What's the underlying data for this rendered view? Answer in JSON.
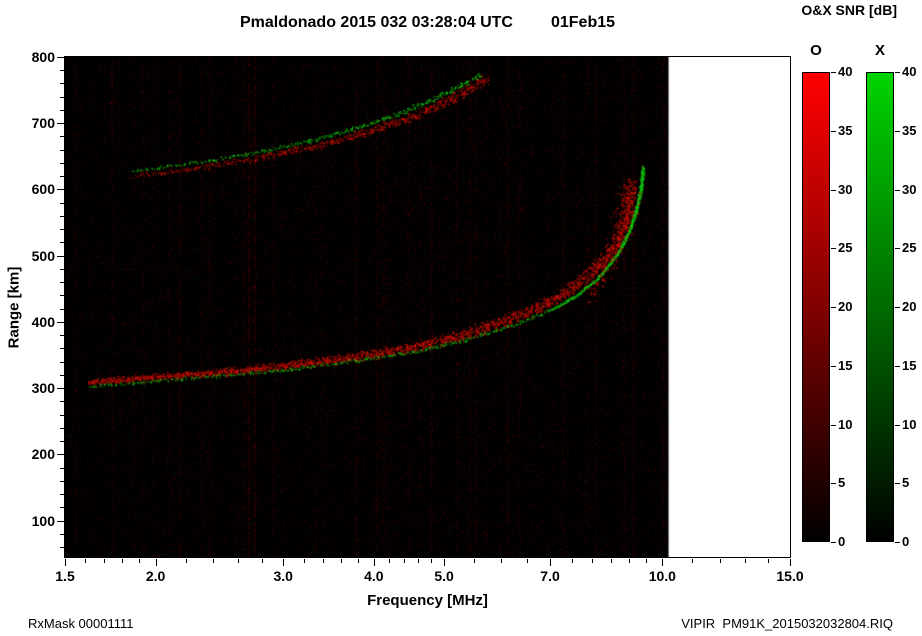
{
  "header": {
    "title": "Pmaldonado 2015 032 03:28:04 UTC",
    "date": "01Feb15",
    "colorbar_title": "O&X SNR [dB]"
  },
  "footer": {
    "left": "RxMask 00001111",
    "right": "VIPIR  PM91K_2015032032804.RIQ"
  },
  "chart_data": {
    "type": "heatmap",
    "title": "Pmaldonado 2015 032 03:28:04 UTC  01Feb15",
    "xlabel": "Frequency [MHz]",
    "ylabel": "Range [km]",
    "x_scale": "log",
    "xlim": [
      1.5,
      15.0
    ],
    "ylim": [
      45,
      800
    ],
    "data_fmax": 10.2,
    "background": "#000000",
    "grid": false,
    "x_ticks": [
      1.5,
      2.0,
      3.0,
      4.0,
      5.0,
      7.0,
      10.0,
      15.0
    ],
    "x_tick_labels": [
      "1.5",
      "2.0",
      "3.0",
      "4.0",
      "5.0",
      "7.0",
      "10.0",
      "15.0"
    ],
    "x_minor_ticks": [
      1.6,
      1.7,
      1.8,
      1.9,
      2.2,
      2.4,
      2.6,
      2.8,
      3.2,
      3.4,
      3.6,
      3.8,
      4.2,
      4.4,
      4.6,
      4.8,
      5.5,
      6.0,
      6.5,
      7.5,
      8.0,
      8.5,
      9.0,
      9.5,
      11,
      12,
      13,
      14
    ],
    "y_ticks": [
      100,
      200,
      300,
      400,
      500,
      600,
      700,
      800
    ],
    "y_minor_step": 20,
    "colorbars": [
      {
        "label": "O",
        "meaning": "O-mode SNR",
        "gradient_bottom": "#000000",
        "gradient_top": "#ff0000",
        "min": 0,
        "max": 40,
        "tick_step": 5
      },
      {
        "label": "X",
        "meaning": "X-mode SNR",
        "gradient_bottom": "#000000",
        "gradient_top": "#00d400",
        "min": 0,
        "max": 40,
        "tick_step": 5
      }
    ],
    "noise": {
      "red_speckles": 26000,
      "streaks": 42,
      "green_speckles": 1800
    },
    "series": [
      {
        "name": "F-region O-mode trace (1st hop)",
        "mode": "O",
        "critical_frequency_mhz": 9.05,
        "points": [
          [
            1.62,
            310
          ],
          [
            2.0,
            317
          ],
          [
            2.5,
            325
          ],
          [
            3.0,
            334
          ],
          [
            3.5,
            343
          ],
          [
            4.0,
            352
          ],
          [
            4.5,
            362
          ],
          [
            5.0,
            373
          ],
          [
            5.5,
            386
          ],
          [
            6.0,
            400
          ],
          [
            6.5,
            415
          ],
          [
            7.0,
            432
          ],
          [
            7.5,
            452
          ],
          [
            8.0,
            476
          ],
          [
            8.3,
            494
          ],
          [
            8.6,
            518
          ],
          [
            8.8,
            542
          ],
          [
            8.95,
            570
          ],
          [
            9.02,
            595
          ],
          [
            9.06,
            612
          ]
        ],
        "spread": [
          3.5,
          9
        ],
        "density": [
          3.5,
          5
        ]
      },
      {
        "name": "F-region X-mode speckle (low freq)",
        "mode": "X",
        "points": [
          [
            1.62,
            303
          ],
          [
            2.2,
            315
          ],
          [
            3.0,
            328
          ],
          [
            3.8,
            342
          ],
          [
            4.6,
            357
          ],
          [
            5.4,
            375
          ],
          [
            6.2,
            395
          ],
          [
            7.0,
            418
          ]
        ],
        "spread": [
          2,
          2.5
        ],
        "density": [
          0.6,
          1.0
        ]
      },
      {
        "name": "F-region X-mode trace near fxF2 (bright)",
        "mode": "X",
        "critical_frequency_mhz": 9.4,
        "points": [
          [
            7.0,
            418
          ],
          [
            7.6,
            440
          ],
          [
            8.1,
            464
          ],
          [
            8.5,
            490
          ],
          [
            8.8,
            516
          ],
          [
            9.05,
            545
          ],
          [
            9.22,
            575
          ],
          [
            9.33,
            600
          ],
          [
            9.4,
            635
          ]
        ],
        "spread": [
          1.6,
          2.2
        ],
        "density": [
          2.5,
          6
        ]
      },
      {
        "name": "O-mode diffuse spread near foF2",
        "mode": "O",
        "points": [
          [
            7.9,
            440
          ],
          [
            8.4,
            480
          ],
          [
            8.7,
            525
          ],
          [
            8.9,
            570
          ],
          [
            9.0,
            600
          ]
        ],
        "spread": [
          10,
          16
        ],
        "density": [
          1.5,
          2.5
        ]
      },
      {
        "name": "Second-hop O-mode trace",
        "mode": "O",
        "points": [
          [
            1.85,
            620
          ],
          [
            2.2,
            631
          ],
          [
            2.6,
            643
          ],
          [
            3.0,
            656
          ],
          [
            3.5,
            672
          ],
          [
            4.0,
            690
          ],
          [
            4.5,
            710
          ],
          [
            5.0,
            732
          ],
          [
            5.3,
            746
          ],
          [
            5.55,
            760
          ],
          [
            5.72,
            770
          ]
        ],
        "spread": [
          3,
          6
        ],
        "density": [
          0.7,
          3
        ]
      },
      {
        "name": "Second-hop X-mode trace",
        "mode": "X",
        "points": [
          [
            1.85,
            628
          ],
          [
            2.3,
            642
          ],
          [
            2.8,
            658
          ],
          [
            3.3,
            675
          ],
          [
            3.8,
            694
          ],
          [
            4.3,
            714
          ],
          [
            4.8,
            736
          ],
          [
            5.15,
            752
          ],
          [
            5.45,
            766
          ],
          [
            5.6,
            774
          ]
        ],
        "spread": [
          2,
          3
        ],
        "density": [
          0.6,
          1.6
        ]
      }
    ]
  }
}
